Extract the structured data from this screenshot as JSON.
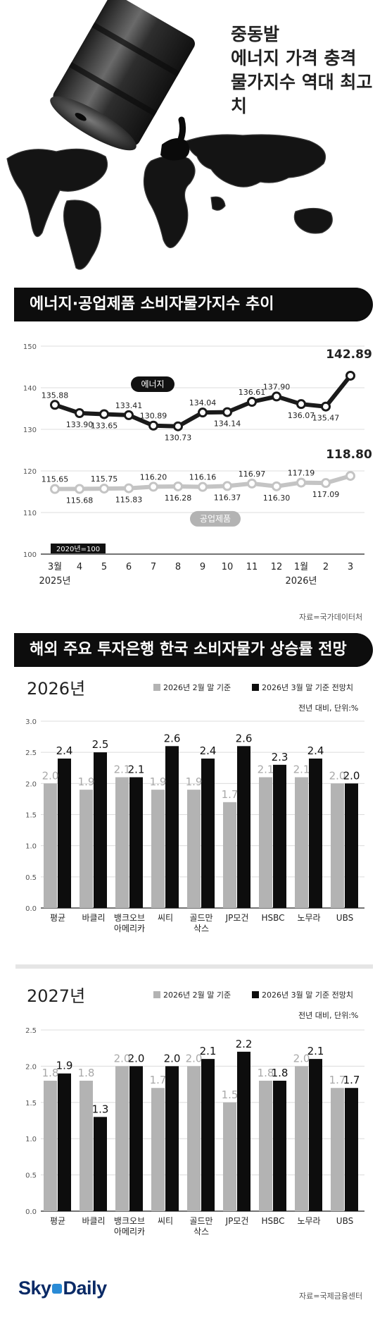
{
  "hero": {
    "title_lines": [
      "중동발",
      "에너지 가격 충격",
      "물가지수 역대 최고치"
    ]
  },
  "section1": {
    "banner": "에너지·공업제품 소비자물가지수 추이"
  },
  "section2": {
    "banner": "해외 주요 투자은행 한국 소비자물가 상승률 전망"
  },
  "legend_labels": {
    "feb": "2026년 2월 말 기준",
    "mar": "2026년 3월 말 기준 전망치"
  },
  "colors": {
    "black": "#0d0d0d",
    "gray": "#b3b3b3",
    "energy_line": "#1a1a1a",
    "industry_line": "#c4c4c4"
  },
  "brand": {
    "sky": "Sky",
    "daily": "Daily"
  },
  "chart_data": [
    {
      "type": "line",
      "x": [
        "3월",
        "4",
        "5",
        "6",
        "7",
        "8",
        "9",
        "10",
        "11",
        "12",
        "1월",
        "2",
        "3"
      ],
      "year_labels": [
        {
          "at": 0,
          "text": "2025년"
        },
        {
          "at": 10,
          "text": "2026년"
        }
      ],
      "ylim": [
        100,
        150
      ],
      "yticks": [
        100,
        110,
        120,
        130,
        140,
        150
      ],
      "note": "2020년=100",
      "series": [
        {
          "name": "에너지",
          "values": [
            135.88,
            133.9,
            133.65,
            133.41,
            130.89,
            130.73,
            134.04,
            134.14,
            136.61,
            137.9,
            136.07,
            135.47,
            142.89
          ]
        },
        {
          "name": "공업제품",
          "values": [
            115.65,
            115.68,
            115.75,
            115.83,
            116.2,
            116.28,
            116.16,
            116.37,
            116.97,
            116.3,
            117.19,
            117.09,
            118.8
          ]
        }
      ],
      "source": "자료=국가데이터처"
    },
    {
      "type": "bar",
      "title": "2026년",
      "categories": [
        "평균",
        "바클리",
        "뱅크오브\n아메리카",
        "씨티",
        "골드만\n삭스",
        "JP모건",
        "HSBC",
        "노무라",
        "UBS"
      ],
      "series": [
        {
          "name": "2026년 2월 말 기준",
          "values": [
            2.0,
            1.9,
            2.1,
            1.9,
            1.9,
            1.7,
            2.1,
            2.1,
            2.0
          ]
        },
        {
          "name": "2026년 3월 말 기준 전망치",
          "values": [
            2.4,
            2.5,
            2.1,
            2.6,
            2.4,
            2.6,
            2.3,
            2.4,
            2.0
          ]
        }
      ],
      "ylim": [
        0,
        3.0
      ],
      "yticks": [
        "0.0",
        "0.5",
        "1.0",
        "1.5",
        "2.0",
        "2.5",
        "3.0"
      ],
      "unit": "전년 대비, 단위:%"
    },
    {
      "type": "bar",
      "title": "2027년",
      "categories": [
        "평균",
        "바클리",
        "뱅크오브\n아메리카",
        "씨티",
        "골드만\n삭스",
        "JP모건",
        "HSBC",
        "노무라",
        "UBS"
      ],
      "series": [
        {
          "name": "2026년 2월 말 기준",
          "values": [
            1.8,
            1.8,
            2.0,
            1.7,
            2.0,
            1.5,
            1.8,
            2.0,
            1.7
          ]
        },
        {
          "name": "2026년 3월 말 기준 전망치",
          "values": [
            1.9,
            1.3,
            2.0,
            2.0,
            2.1,
            2.2,
            1.8,
            2.1,
            1.7
          ]
        }
      ],
      "ylim": [
        0,
        2.5
      ],
      "yticks": [
        "0.0",
        "0.5",
        "1.0",
        "1.5",
        "2.0",
        "2.5"
      ],
      "unit": "전년 대비, 단위:%",
      "source": "자료=국제금융센터"
    }
  ]
}
